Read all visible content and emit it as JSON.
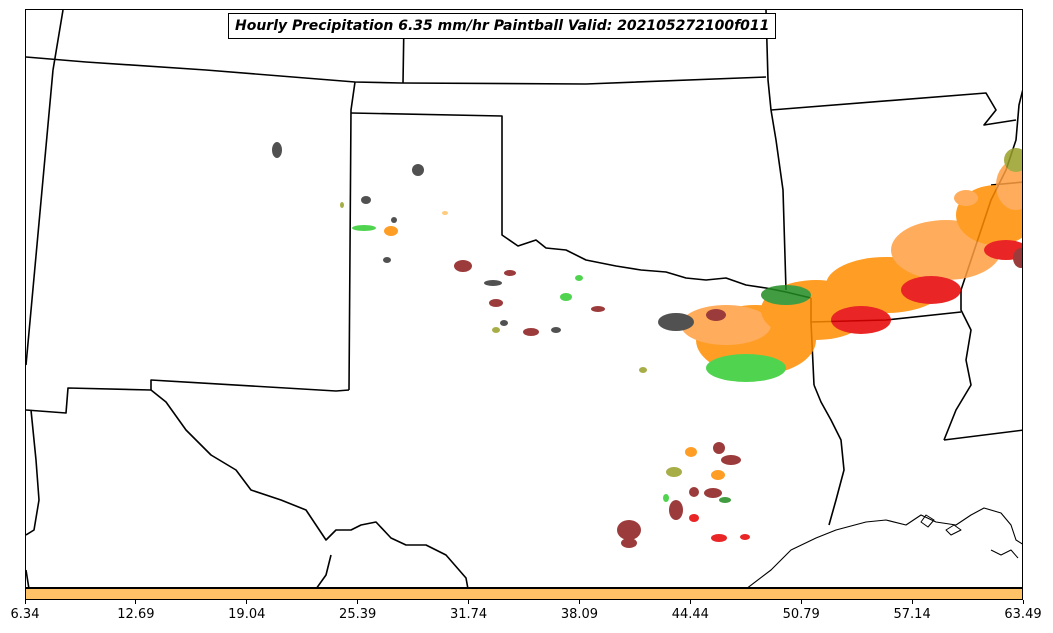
{
  "title": "Hourly Precipitation 6.35 mm/hr Paintball Valid: 202105272100f011",
  "colorbar": {
    "color": "#ffc266",
    "ticks": [
      "6.34",
      "12.69",
      "19.04",
      "25.39",
      "31.74",
      "38.09",
      "44.44",
      "50.79",
      "57.14",
      "63.49"
    ]
  },
  "map": {
    "region": "Southern Plains",
    "boundary_color": "#000000",
    "paintball_colors": [
      "#ff8c00",
      "#ff9f40",
      "#e60000",
      "#8b1a1a",
      "#32cd32",
      "#228b22",
      "#9aa028",
      "#333333"
    ]
  }
}
